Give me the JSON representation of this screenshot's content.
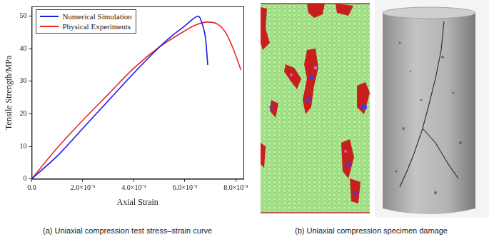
{
  "chart_data": {
    "type": "line",
    "x_label": "Axial Strain",
    "y_label": "Tensile Strength/MPa",
    "xlim": [
      0,
      0.0083
    ],
    "ylim": [
      0,
      53
    ],
    "xticks": [
      {
        "value": 0,
        "label": "0.0"
      },
      {
        "value": 0.002,
        "label": "2.0×10⁻³"
      },
      {
        "value": 0.004,
        "label": "4.0×10⁻³"
      },
      {
        "value": 0.006,
        "label": "6.0×10⁻³"
      },
      {
        "value": 0.008,
        "label": "8.0×10⁻³"
      }
    ],
    "yticks": [
      0,
      10,
      20,
      30,
      40,
      50
    ],
    "grid": false,
    "legend": "upper left",
    "series": [
      {
        "name": "Numerical Simulation",
        "color": "#1a1ae6",
        "x": [
          0,
          0.001,
          0.002,
          0.003,
          0.004,
          0.005,
          0.0055,
          0.006,
          0.0063,
          0.0065,
          0.0066,
          0.0068,
          0.0069
        ],
        "values": [
          0,
          7,
          15.5,
          24,
          32.5,
          40.5,
          44,
          47,
          49,
          50,
          49.5,
          44,
          35
        ]
      },
      {
        "name": "Physical Experiments",
        "color": "#e62a2a",
        "x": [
          0,
          0.001,
          0.002,
          0.003,
          0.004,
          0.005,
          0.006,
          0.0065,
          0.0069,
          0.0073,
          0.0076,
          0.0079,
          0.0082
        ],
        "values": [
          0,
          9.5,
          18,
          26,
          34,
          40.5,
          45.5,
          47.5,
          48.2,
          47.5,
          45,
          40,
          33.5
        ]
      }
    ]
  },
  "captions": [
    "(a) Uniaxial compression test stress–strain curve",
    "(b) Uniaxial compression specimen damage"
  ]
}
